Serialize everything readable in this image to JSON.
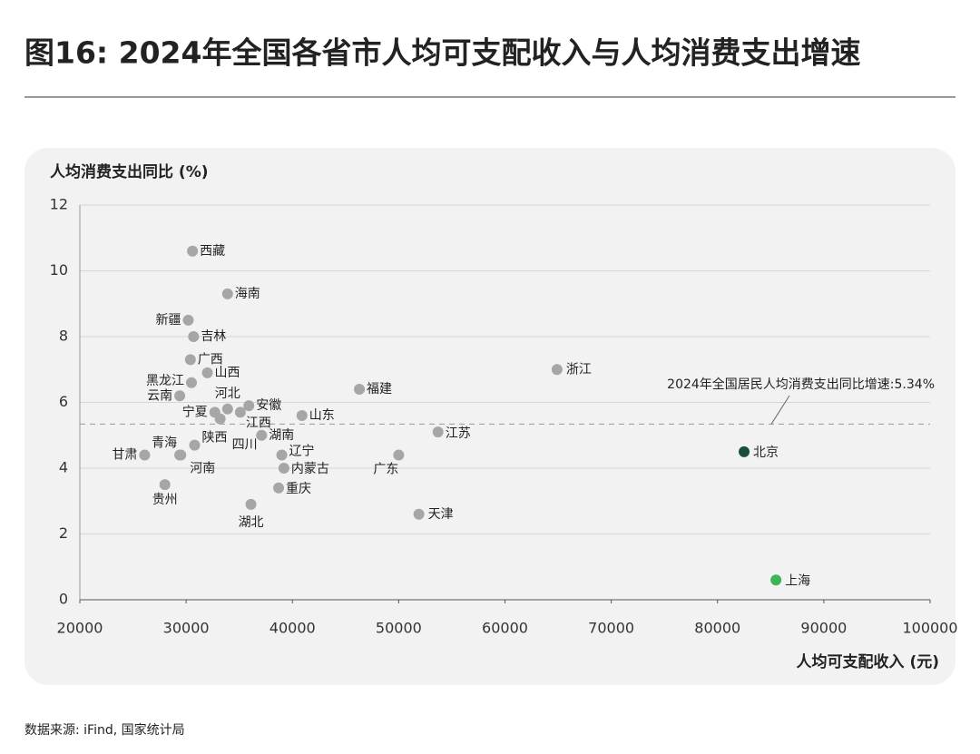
{
  "chart_data": {
    "type": "scatter",
    "title": "图16: 2024年全国各省市人均可支配收入与人均消费支出增速",
    "y_label": "人均消费支出同比 (%)",
    "x_label": "人均可支配收入 (元)",
    "source": "数据来源: iFind, 国家统计局",
    "xlim": [
      20000,
      100000
    ],
    "xticks": [
      20000,
      30000,
      40000,
      50000,
      60000,
      70000,
      80000,
      90000,
      100000
    ],
    "ylim": [
      0,
      12
    ],
    "yticks": [
      0,
      2,
      4,
      6,
      8,
      10,
      12
    ],
    "grid": true,
    "reference": {
      "value": 5.34,
      "label": "2024年全国居民人均消费支出同比增速:5.34%"
    },
    "points": [
      {
        "name": "西藏",
        "x": 30600,
        "y": 10.6,
        "color": "#a6a6a6"
      },
      {
        "name": "海南",
        "x": 33900,
        "y": 9.3,
        "color": "#a6a6a6"
      },
      {
        "name": "新疆",
        "x": 30200,
        "y": 8.5,
        "color": "#a6a6a6"
      },
      {
        "name": "吉林",
        "x": 30700,
        "y": 8.0,
        "color": "#a6a6a6"
      },
      {
        "name": "广西",
        "x": 30400,
        "y": 7.3,
        "color": "#a6a6a6"
      },
      {
        "name": "山西",
        "x": 32000,
        "y": 6.9,
        "color": "#a6a6a6"
      },
      {
        "name": "黑龙江",
        "x": 30500,
        "y": 6.6,
        "color": "#a6a6a6"
      },
      {
        "name": "云南",
        "x": 29400,
        "y": 6.2,
        "color": "#a6a6a6"
      },
      {
        "name": "河北",
        "x": 33900,
        "y": 5.8,
        "color": "#a6a6a6"
      },
      {
        "name": "安徽",
        "x": 35900,
        "y": 5.9,
        "color": "#a6a6a6"
      },
      {
        "name": "宁夏",
        "x": 32700,
        "y": 5.7,
        "color": "#a6a6a6"
      },
      {
        "name": "江西",
        "x": 35100,
        "y": 5.7,
        "color": "#a6a6a6"
      },
      {
        "name": "四川",
        "x": 33200,
        "y": 5.5,
        "color": "#a6a6a6"
      },
      {
        "name": "陕西",
        "x": 30800,
        "y": 4.7,
        "color": "#a6a6a6"
      },
      {
        "name": "青海",
        "x": 29400,
        "y": 4.4,
        "color": "#a6a6a6"
      },
      {
        "name": "河南",
        "x": 29500,
        "y": 4.4,
        "color": "#a6a6a6"
      },
      {
        "name": "湖南",
        "x": 37100,
        "y": 5.0,
        "color": "#a6a6a6"
      },
      {
        "name": "辽宁",
        "x": 39000,
        "y": 4.4,
        "color": "#a6a6a6"
      },
      {
        "name": "内蒙古",
        "x": 39200,
        "y": 4.0,
        "color": "#a6a6a6"
      },
      {
        "name": "重庆",
        "x": 38700,
        "y": 3.4,
        "color": "#a6a6a6"
      },
      {
        "name": "湖北",
        "x": 36100,
        "y": 2.9,
        "color": "#a6a6a6"
      },
      {
        "name": "贵州",
        "x": 28000,
        "y": 3.5,
        "color": "#a6a6a6"
      },
      {
        "name": "甘肃",
        "x": 26100,
        "y": 4.4,
        "color": "#a6a6a6"
      },
      {
        "name": "山东",
        "x": 40900,
        "y": 5.6,
        "color": "#a6a6a6"
      },
      {
        "name": "福建",
        "x": 46300,
        "y": 6.4,
        "color": "#a6a6a6"
      },
      {
        "name": "广东",
        "x": 50000,
        "y": 4.4,
        "color": "#a6a6a6"
      },
      {
        "name": "江苏",
        "x": 53700,
        "y": 5.1,
        "color": "#a6a6a6"
      },
      {
        "name": "天津",
        "x": 51900,
        "y": 2.6,
        "color": "#a6a6a6"
      },
      {
        "name": "浙江",
        "x": 64900,
        "y": 7.0,
        "color": "#a6a6a6"
      },
      {
        "name": "北京",
        "x": 82500,
        "y": 4.5,
        "color": "#1b4d3e"
      },
      {
        "name": "上海",
        "x": 85500,
        "y": 0.6,
        "color": "#3cb55a"
      }
    ]
  }
}
